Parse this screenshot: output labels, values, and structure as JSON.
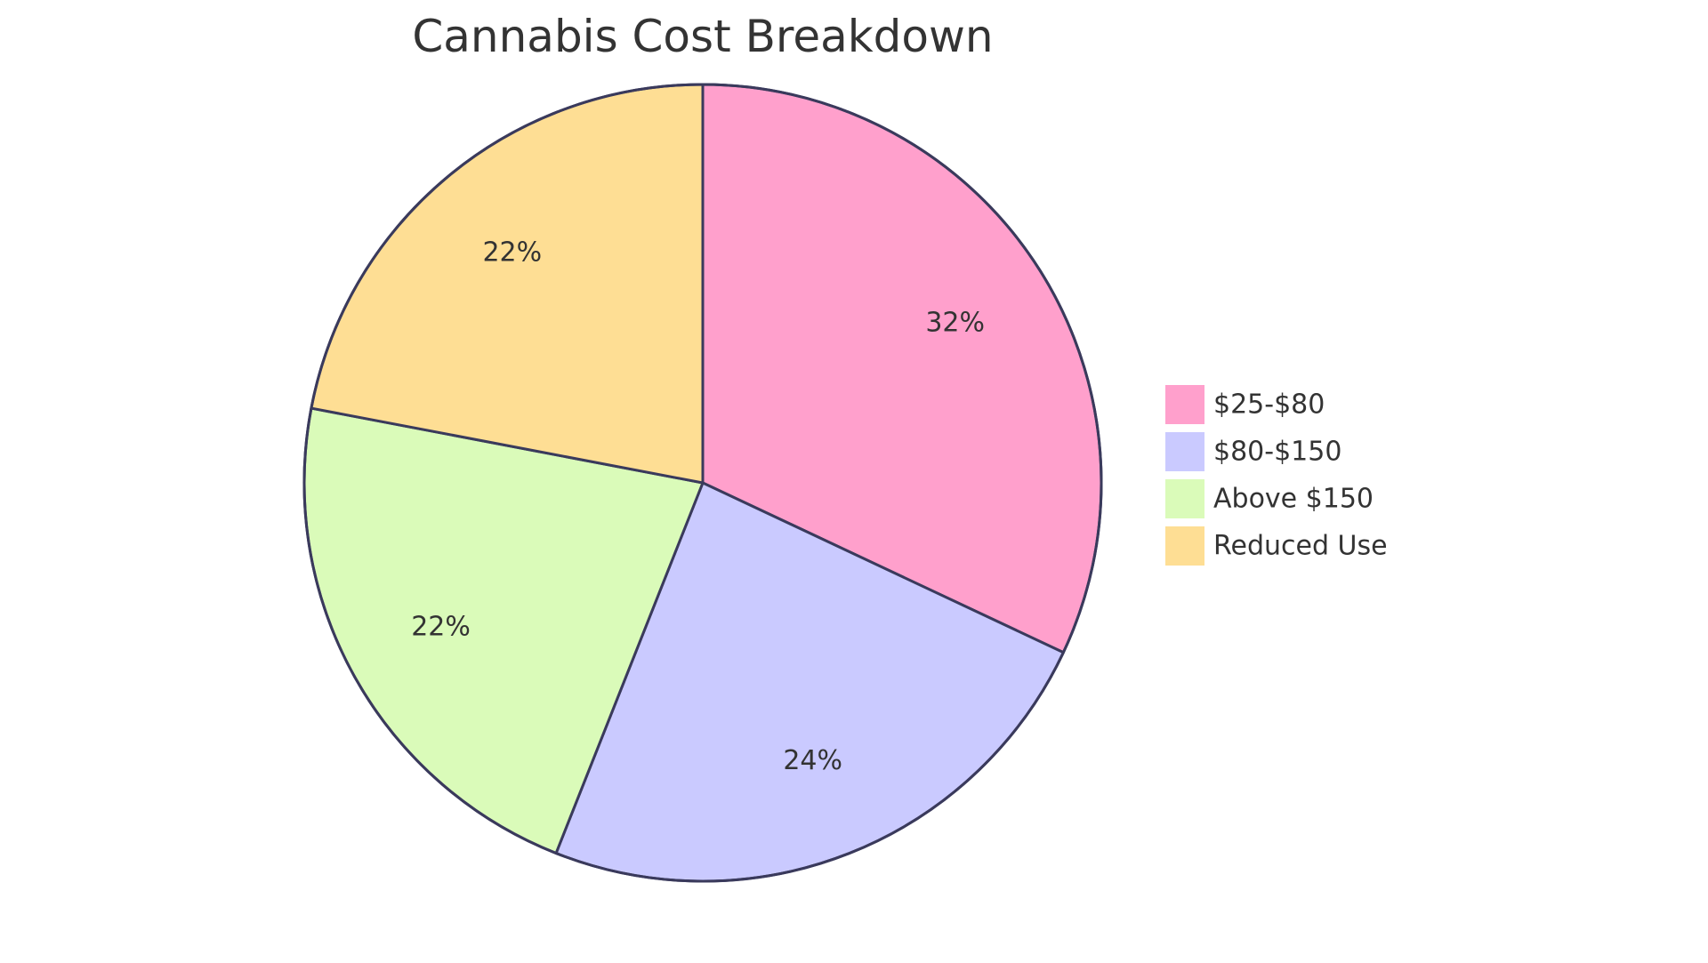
{
  "chart_data": {
    "type": "pie",
    "title": "Cannabis Cost Breakdown",
    "slices": [
      {
        "label": "$25-$80",
        "value": 32,
        "display": "32%",
        "color": "#FFA0CC"
      },
      {
        "label": "$80-$150",
        "value": 24,
        "display": "24%",
        "color": "#CACAFF"
      },
      {
        "label": "Above $150",
        "value": 22,
        "display": "22%",
        "color": "#DAFBB9"
      },
      {
        "label": "Reduced Use",
        "value": 22,
        "display": "22%",
        "color": "#FEDE94"
      }
    ],
    "legend_position": "right",
    "stroke_color": "#3A3A5C"
  }
}
